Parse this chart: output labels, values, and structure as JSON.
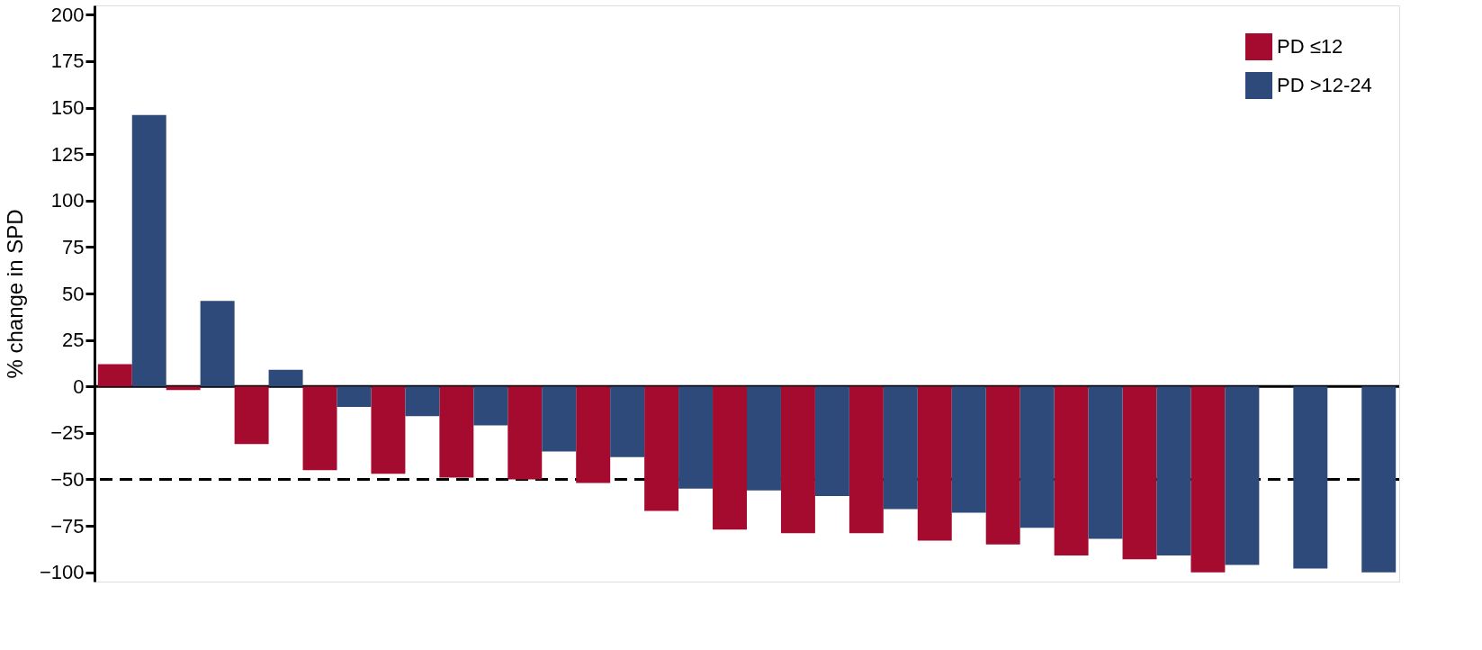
{
  "chart_data": {
    "type": "bar",
    "ylabel": "% change in SPD",
    "categories": [
      null,
      null,
      null,
      null,
      null,
      null,
      null,
      null,
      null,
      null,
      null,
      null,
      null,
      null,
      null,
      null,
      null,
      null,
      null
    ],
    "series": [
      {
        "name": "PD ≤12",
        "color": "#a50b2f",
        "values": [
          12,
          -2,
          -31,
          -45,
          -47,
          -49,
          -50,
          -52,
          -67,
          -77,
          -79,
          -79,
          -83,
          -85,
          -91,
          -93,
          -100,
          null,
          null
        ]
      },
      {
        "name": "PD >12-24",
        "color": "#2e4a7a",
        "values": [
          146,
          46,
          9,
          -11,
          -16,
          -21,
          -35,
          -38,
          -55,
          -56,
          -59,
          -66,
          -68,
          -76,
          -82,
          -91,
          -96,
          -98,
          -100
        ]
      }
    ],
    "ylim": [
      -105,
      205
    ],
    "yticks": [
      -100,
      -75,
      -50,
      -25,
      0,
      25,
      50,
      75,
      100,
      125,
      150,
      175,
      200
    ],
    "ref_lines": [
      {
        "axis": "y",
        "value": 0,
        "color": "#000000",
        "line_style": "solid"
      },
      {
        "axis": "y",
        "value": -50,
        "color": "#000000",
        "line_style": "dashed"
      }
    ],
    "legend": "top right",
    "grid": false,
    "tick_labels": "y"
  }
}
